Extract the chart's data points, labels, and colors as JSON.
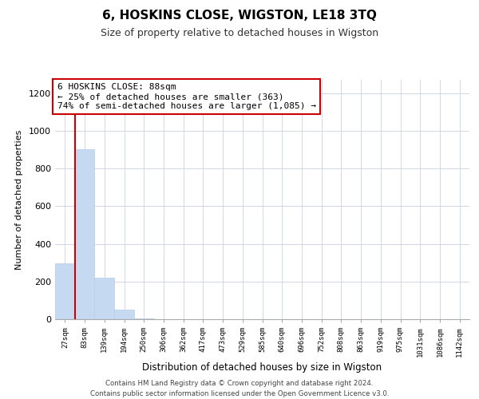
{
  "title": "6, HOSKINS CLOSE, WIGSTON, LE18 3TQ",
  "subtitle": "Size of property relative to detached houses in Wigston",
  "xlabel": "Distribution of detached houses by size in Wigston",
  "ylabel": "Number of detached properties",
  "bar_labels": [
    "27sqm",
    "83sqm",
    "139sqm",
    "194sqm",
    "250sqm",
    "306sqm",
    "362sqm",
    "417sqm",
    "473sqm",
    "529sqm",
    "585sqm",
    "640sqm",
    "696sqm",
    "752sqm",
    "808sqm",
    "863sqm",
    "919sqm",
    "975sqm",
    "1031sqm",
    "1086sqm",
    "1142sqm"
  ],
  "bar_values": [
    295,
    900,
    220,
    50,
    5,
    0,
    0,
    0,
    0,
    0,
    0,
    0,
    0,
    0,
    0,
    0,
    0,
    0,
    0,
    0,
    0
  ],
  "bar_color": "#c5d9f1",
  "bar_edge_color": "#b8cce4",
  "property_line_color": "#cc0000",
  "annotation_text": "6 HOSKINS CLOSE: 88sqm\n← 25% of detached houses are smaller (363)\n74% of semi-detached houses are larger (1,085) →",
  "annotation_box_color": "#ffffff",
  "annotation_box_edge_color": "#cc0000",
  "ylim": [
    0,
    1270
  ],
  "yticks": [
    0,
    200,
    400,
    600,
    800,
    1000,
    1200
  ],
  "footer_text": "Contains HM Land Registry data © Crown copyright and database right 2024.\nContains public sector information licensed under the Open Government Licence v3.0.",
  "grid_color": "#d0d8e8",
  "background_color": "#ffffff"
}
